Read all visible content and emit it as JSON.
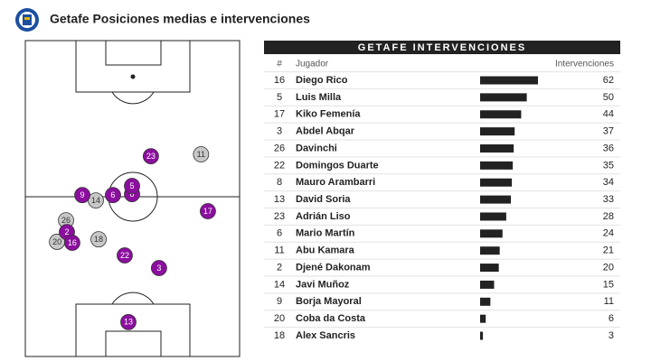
{
  "header": {
    "title": "Getafe Posiciones medias e intervenciones"
  },
  "pitch": {
    "players": [
      {
        "number": "11",
        "x": 82,
        "y": 36,
        "color": "#c8c8c8"
      },
      {
        "number": "23",
        "x": 58.6,
        "y": 36.6,
        "color": "#8b0f9e"
      },
      {
        "number": "14",
        "x": 32.9,
        "y": 50.6,
        "color": "#c8c8c8"
      },
      {
        "number": "9",
        "x": 26.6,
        "y": 48.9,
        "color": "#8b0f9e"
      },
      {
        "number": "6",
        "x": 40.9,
        "y": 48.9,
        "color": "#8b0f9e"
      },
      {
        "number": "8",
        "x": 49.8,
        "y": 48.6,
        "color": "#8b0f9e"
      },
      {
        "number": "5",
        "x": 49.8,
        "y": 46,
        "color": "#8b0f9e"
      },
      {
        "number": "17",
        "x": 85.2,
        "y": 54,
        "color": "#8b0f9e"
      },
      {
        "number": "26",
        "x": 19,
        "y": 56.9,
        "color": "#c8c8c8"
      },
      {
        "number": "20",
        "x": 14.8,
        "y": 63.7,
        "color": "#c8c8c8"
      },
      {
        "number": "2",
        "x": 19.4,
        "y": 60.6,
        "color": "#8b0f9e"
      },
      {
        "number": "16",
        "x": 21.9,
        "y": 64,
        "color": "#8b0f9e"
      },
      {
        "number": "18",
        "x": 34.2,
        "y": 62.9,
        "color": "#c8c8c8"
      },
      {
        "number": "22",
        "x": 46.4,
        "y": 68,
        "color": "#8b0f9e"
      },
      {
        "number": "3",
        "x": 62.4,
        "y": 72,
        "color": "#8b0f9e"
      },
      {
        "number": "13",
        "x": 48.1,
        "y": 89.1,
        "color": "#8b0f9e"
      }
    ]
  },
  "table": {
    "title": "GETAFE INTERVENCIONES",
    "bar_color": "#222222",
    "columns": [
      "#",
      "Jugador",
      "Intervenciones"
    ],
    "rows": [
      {
        "number": "16",
        "name": "Diego Rico",
        "value": 62
      },
      {
        "number": "5",
        "name": "Luis Milla",
        "value": 50
      },
      {
        "number": "17",
        "name": "Kiko Femenía",
        "value": 44
      },
      {
        "number": "3",
        "name": "Abdel Abqar",
        "value": 37
      },
      {
        "number": "26",
        "name": "Davinchi",
        "value": 36
      },
      {
        "number": "22",
        "name": "Domingos Duarte",
        "value": 35
      },
      {
        "number": "8",
        "name": "Mauro Arambarri",
        "value": 34
      },
      {
        "number": "13",
        "name": "David Soria",
        "value": 33
      },
      {
        "number": "23",
        "name": "Adrián Liso",
        "value": 28
      },
      {
        "number": "6",
        "name": "Mario Martín",
        "value": 24
      },
      {
        "number": "11",
        "name": "Abu Kamara",
        "value": 21
      },
      {
        "number": "2",
        "name": "Djené Dakonam",
        "value": 20
      },
      {
        "number": "14",
        "name": "Javi Muñoz",
        "value": 15
      },
      {
        "number": "9",
        "name": "Borja Mayoral",
        "value": 11
      },
      {
        "number": "20",
        "name": "Coba da Costa",
        "value": 6
      },
      {
        "number": "18",
        "name": "Alex Sancris",
        "value": 3
      }
    ]
  }
}
